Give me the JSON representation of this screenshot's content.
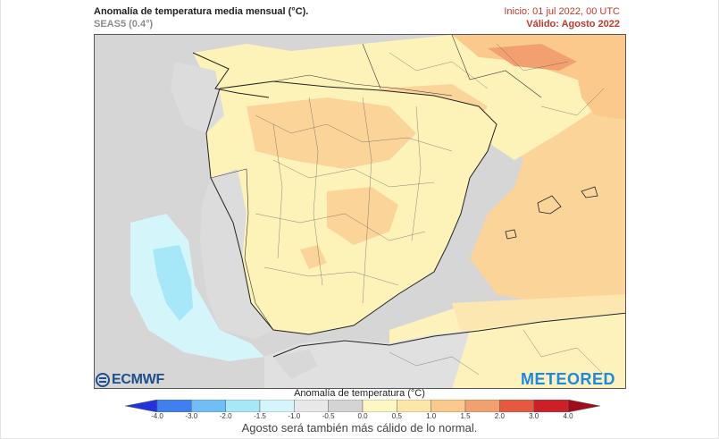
{
  "header": {
    "title": "Anomalía de temperatura media mensual (°C).",
    "model": "SEAS5 (0.4°)",
    "init": "Inicio: 01 jul 2022, 00 UTC",
    "valid": "Válido: Agosto 2022"
  },
  "logos": {
    "left": "ECMWF",
    "right": "METEORED"
  },
  "legend": {
    "title": "Anomalía de temperatura (°C)",
    "ticks": [
      "-4.0",
      "-3.0",
      "-2.0",
      "-1.5",
      "-1.0",
      "-0.5",
      "0.0",
      "0.5",
      "1.0",
      "1.5",
      "2.0",
      "3.0",
      "4.0"
    ],
    "colors": [
      "#2233dd",
      "#3f7fee",
      "#6fbef5",
      "#a6e8f7",
      "#d4f6fa",
      "#e8e8e8",
      "#d4d4d4",
      "#fdf7c3",
      "#fde7a8",
      "#fbc98b",
      "#f3a070",
      "#e5593f",
      "#cc1f26",
      "#9e0d1a"
    ]
  },
  "caption": "Agosto será también más cálido de lo normal.",
  "colors": {
    "sea_gray": "#d8d8d8",
    "land_gray": "#dcdcdc",
    "pale_yellow": "#fdf7c3",
    "light_orange": "#fde0a6",
    "orange": "#fbc98b",
    "dark_orange": "#f3a070",
    "light_cyan": "#d4f6fa",
    "cyan": "#a6e8f7",
    "border": "#222222",
    "accent_red": "#c0392b"
  }
}
